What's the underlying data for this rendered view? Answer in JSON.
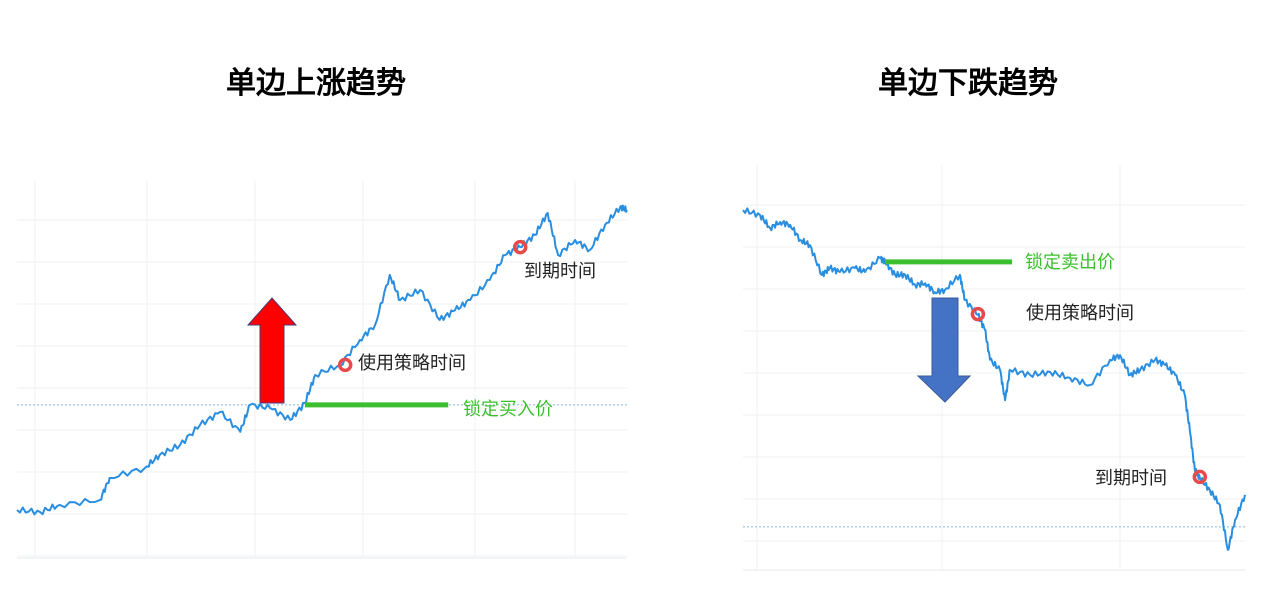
{
  "chart_data": [
    {
      "type": "line",
      "title": "单边上涨趋势",
      "title_color": "#ee1111",
      "line_color": "#2a8ee0",
      "grid": true,
      "xlim": [
        0,
        100
      ],
      "ylim": [
        0,
        100
      ],
      "series": [
        {
          "x": [
            0,
            3.8,
            7.0,
            13.6,
            15.2,
            21.0,
            23.4,
            26.7,
            30.0,
            33.3,
            36.6,
            38.2,
            41.5,
            44.8,
            47.2,
            48.9,
            53.0,
            56.2,
            58.7,
            61.1,
            62.8,
            66.1,
            69.3,
            71.8,
            74.3,
            77.5,
            80.0,
            82.5,
            84.9,
            87.0,
            88.7,
            91.5,
            93.9,
            96.4,
            98.9,
            100
          ],
          "y": [
            13.9,
            13.3,
            15.3,
            16.7,
            22.8,
            25.6,
            29.2,
            31.9,
            37.5,
            41.1,
            35.6,
            43.1,
            42.2,
            38.9,
            43.6,
            51.4,
            54.2,
            61.1,
            65.3,
            79.2,
            72.2,
            75.0,
            66.7,
            69.4,
            72.2,
            77.8,
            84.7,
            86.9,
            90.3,
            96.4,
            84.7,
            88.9,
            86.1,
            93.1,
            98.1,
            97.2
          ]
        }
      ],
      "reference_level": 43.1,
      "lock_line": {
        "label": "锁定买入价",
        "y": 43.1,
        "x_range": [
          47.2,
          70.7
        ],
        "color": "#3cbf2e"
      },
      "markers": [
        {
          "label": "使用策略时间",
          "x": 53.8,
          "y": 54.2
        },
        {
          "label": "到期时间",
          "x": 82.5,
          "y": 86.9
        }
      ],
      "arrow": {
        "direction": "up",
        "color": "#ff0000"
      }
    },
    {
      "type": "line",
      "title": "单边下跌趋势",
      "title_color": "#1a6fb8",
      "line_color": "#2a8ee0",
      "grid": true,
      "xlim": [
        0,
        100
      ],
      "ylim": [
        0,
        100
      ],
      "series": [
        {
          "x": [
            0,
            3.4,
            5.4,
            7.4,
            9.4,
            11.4,
            13.3,
            15.7,
            17.3,
            19.3,
            22.3,
            24.3,
            27.3,
            28.3,
            30.3,
            32.3,
            34.3,
            36.3,
            38.2,
            40.2,
            43.2,
            44.2,
            46.8,
            48.2,
            49.2,
            51.2,
            52.2,
            53.2,
            57.2,
            61.2,
            65.1,
            69.1,
            73.1,
            75.1,
            77.1,
            79.1,
            82.1,
            84.1,
            86.1,
            88.0,
            89.0,
            90.0,
            91.0,
            93.0,
            95.0,
            96.6,
            98.0,
            100
          ],
          "y": [
            97.2,
            95.8,
            92.2,
            93.9,
            93.1,
            88.9,
            87.5,
            79.2,
            81.1,
            80.0,
            81.1,
            80.0,
            83.9,
            82.8,
            79.2,
            79.2,
            76.4,
            76.9,
            74.4,
            75.0,
            79.2,
            72.2,
            68.1,
            63.9,
            55.6,
            52.8,
            44.4,
            52.8,
            51.4,
            52.2,
            50.6,
            48.6,
            55.6,
            56.9,
            51.4,
            52.8,
            55.6,
            54.2,
            51.4,
            45.8,
            36.1,
            25.0,
            22.8,
            19.4,
            15.3,
            2.8,
            11.1,
            18.1
          ]
        }
      ],
      "reference_level": 9.2,
      "lock_line": {
        "label": "锁定卖出价",
        "y": 82.8,
        "x_range": [
          28.3,
          53.6
        ],
        "color": "#3cbf2e"
      },
      "markers": [
        {
          "label": "使用策略时间",
          "x": 46.8,
          "y": 68.3
        },
        {
          "label": "到期时间",
          "x": 91.0,
          "y": 23.1
        }
      ],
      "arrow": {
        "direction": "down",
        "color": "#4472c4"
      }
    }
  ]
}
